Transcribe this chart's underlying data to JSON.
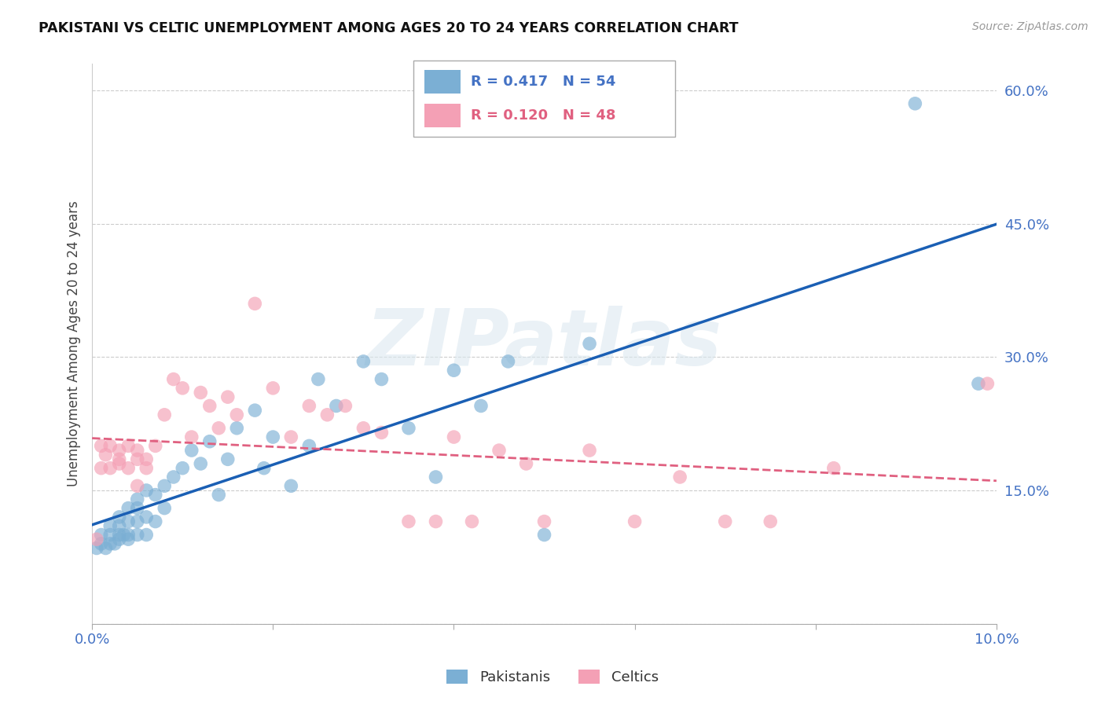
{
  "title": "PAKISTANI VS CELTIC UNEMPLOYMENT AMONG AGES 20 TO 24 YEARS CORRELATION CHART",
  "source": "Source: ZipAtlas.com",
  "ylabel": "Unemployment Among Ages 20 to 24 years",
  "yticks": [
    0.0,
    0.15,
    0.3,
    0.45,
    0.6
  ],
  "ytick_labels": [
    "",
    "15.0%",
    "30.0%",
    "45.0%",
    "60.0%"
  ],
  "xlim": [
    0.0,
    0.1
  ],
  "ylim": [
    0.0,
    0.63
  ],
  "legend_r1": "R = 0.417",
  "legend_n1": "N = 54",
  "legend_r2": "R = 0.120",
  "legend_n2": "N = 48",
  "pakistani_color": "#7bafd4",
  "celtic_color": "#f4a0b5",
  "pakistani_line_color": "#1a5fb4",
  "celtic_line_color": "#e06080",
  "background_color": "#ffffff",
  "watermark": "ZIPatlas",
  "pakistanis_x": [
    0.0005,
    0.001,
    0.001,
    0.0015,
    0.002,
    0.002,
    0.002,
    0.0025,
    0.003,
    0.003,
    0.003,
    0.003,
    0.0035,
    0.004,
    0.004,
    0.004,
    0.004,
    0.005,
    0.005,
    0.005,
    0.005,
    0.006,
    0.006,
    0.006,
    0.007,
    0.007,
    0.008,
    0.008,
    0.009,
    0.01,
    0.011,
    0.012,
    0.013,
    0.014,
    0.015,
    0.016,
    0.018,
    0.019,
    0.02,
    0.022,
    0.024,
    0.025,
    0.027,
    0.03,
    0.032,
    0.035,
    0.038,
    0.04,
    0.043,
    0.046,
    0.05,
    0.055,
    0.091,
    0.098
  ],
  "pakistanis_y": [
    0.085,
    0.09,
    0.1,
    0.085,
    0.09,
    0.1,
    0.11,
    0.09,
    0.095,
    0.1,
    0.11,
    0.12,
    0.1,
    0.095,
    0.1,
    0.115,
    0.13,
    0.1,
    0.115,
    0.13,
    0.14,
    0.1,
    0.12,
    0.15,
    0.115,
    0.145,
    0.13,
    0.155,
    0.165,
    0.175,
    0.195,
    0.18,
    0.205,
    0.145,
    0.185,
    0.22,
    0.24,
    0.175,
    0.21,
    0.155,
    0.2,
    0.275,
    0.245,
    0.295,
    0.275,
    0.22,
    0.165,
    0.285,
    0.245,
    0.295,
    0.1,
    0.315,
    0.585,
    0.27
  ],
  "celtics_x": [
    0.0005,
    0.001,
    0.001,
    0.0015,
    0.002,
    0.002,
    0.003,
    0.003,
    0.003,
    0.004,
    0.004,
    0.005,
    0.005,
    0.005,
    0.006,
    0.006,
    0.007,
    0.008,
    0.009,
    0.01,
    0.011,
    0.012,
    0.013,
    0.014,
    0.015,
    0.016,
    0.018,
    0.02,
    0.022,
    0.024,
    0.026,
    0.028,
    0.03,
    0.032,
    0.035,
    0.038,
    0.04,
    0.042,
    0.045,
    0.048,
    0.05,
    0.055,
    0.06,
    0.065,
    0.07,
    0.075,
    0.082,
    0.099
  ],
  "celtics_y": [
    0.095,
    0.2,
    0.175,
    0.19,
    0.2,
    0.175,
    0.195,
    0.18,
    0.185,
    0.2,
    0.175,
    0.185,
    0.195,
    0.155,
    0.185,
    0.175,
    0.2,
    0.235,
    0.275,
    0.265,
    0.21,
    0.26,
    0.245,
    0.22,
    0.255,
    0.235,
    0.36,
    0.265,
    0.21,
    0.245,
    0.235,
    0.245,
    0.22,
    0.215,
    0.115,
    0.115,
    0.21,
    0.115,
    0.195,
    0.18,
    0.115,
    0.195,
    0.115,
    0.165,
    0.115,
    0.115,
    0.175,
    0.27
  ]
}
